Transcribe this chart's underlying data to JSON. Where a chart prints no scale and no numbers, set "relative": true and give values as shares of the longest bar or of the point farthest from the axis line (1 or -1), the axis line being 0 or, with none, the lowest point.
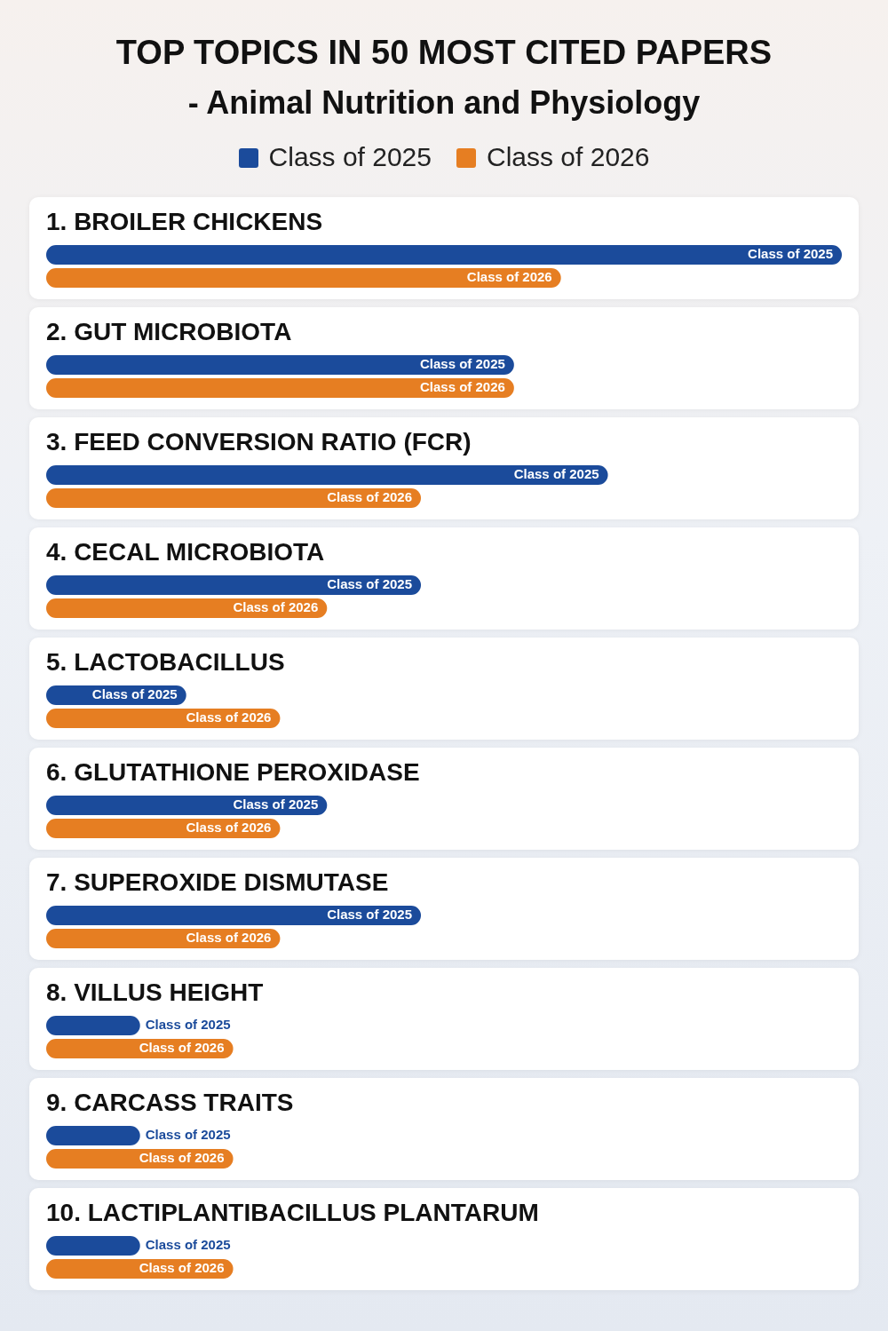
{
  "chart_data": {
    "type": "bar",
    "orientation": "horizontal",
    "relative": true,
    "legend": "top",
    "title": "TOP TOPICS IN 50 MOST CITED PAPERS",
    "subtitle": "- Animal Nutrition and Physiology",
    "categories": [
      "1. BROILER CHICKENS",
      "2. GUT MICROBIOTA",
      "3. FEED CONVERSION RATIO (FCR)",
      "4. CECAL MICROBIOTA",
      "5. LACTOBACILLUS",
      "6. GLUTATHIONE PEROXIDASE",
      "7. SUPEROXIDE DISMUTASE",
      "8. VILLUS HEIGHT",
      "9. CARCASS TRAITS",
      "10. LACTIPLANTIBACILLUS PLANTARUM"
    ],
    "series": [
      {
        "name": "Class of 2025",
        "color": "#1b4b9b",
        "values": [
          1,
          0.588,
          0.706,
          0.471,
          0.176,
          0.353,
          0.471,
          0.118,
          0.118,
          0.118
        ]
      },
      {
        "name": "Class of 2026",
        "color": "#e67e22",
        "values": [
          0.647,
          0.588,
          0.471,
          0.353,
          0.294,
          0.294,
          0.294,
          0.235,
          0.235,
          0.235
        ]
      }
    ]
  }
}
